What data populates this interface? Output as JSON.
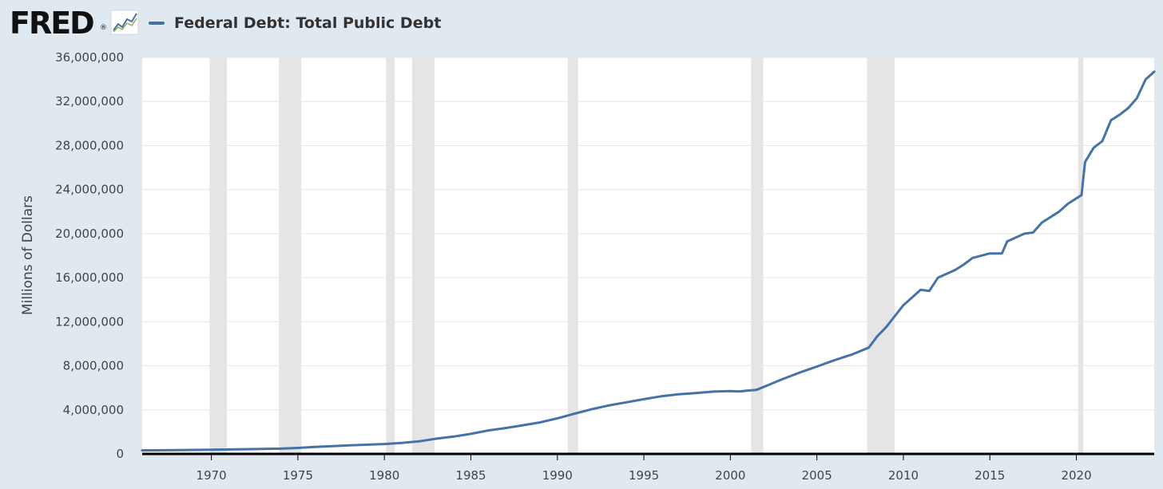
{
  "logo": {
    "text": "FRED",
    "reg": "®",
    "icon": "fred-graph-icon"
  },
  "colors": {
    "series": "#4572a7",
    "background": "#e1e9f0",
    "plot": "#ffffff",
    "recession": "#e5e5e5",
    "grid": "#e6e6e6",
    "axis": "#000000"
  },
  "chart_data": {
    "type": "line",
    "title": "",
    "xlabel": "",
    "ylabel": "Millions of Dollars",
    "xlim": [
      1966.0,
      2024.5
    ],
    "ylim": [
      0,
      36000000
    ],
    "yticks": [
      0,
      4000000,
      8000000,
      12000000,
      16000000,
      20000000,
      24000000,
      28000000,
      32000000,
      36000000
    ],
    "ytick_labels": [
      "0",
      "4,000,000",
      "8,000,000",
      "12,000,000",
      "16,000,000",
      "20,000,000",
      "24,000,000",
      "28,000,000",
      "32,000,000",
      "36,000,000"
    ],
    "xticks": [
      1970,
      1975,
      1980,
      1985,
      1990,
      1995,
      2000,
      2005,
      2010,
      2015,
      2020
    ],
    "xtick_labels": [
      "1970",
      "1975",
      "1980",
      "1985",
      "1990",
      "1995",
      "2000",
      "2005",
      "2010",
      "2015",
      "2020"
    ],
    "grid": true,
    "legend": "top-left",
    "recessions": [
      [
        1969.9,
        1970.9
      ],
      [
        1973.9,
        1975.2
      ],
      [
        1980.1,
        1980.6
      ],
      [
        1981.6,
        1982.9
      ],
      [
        1990.6,
        1991.2
      ],
      [
        2001.2,
        2001.9
      ],
      [
        2007.9,
        2009.5
      ],
      [
        2020.1,
        2020.4
      ]
    ],
    "series": [
      {
        "name": "Federal Debt: Total Public Debt",
        "x": [
          1966.0,
          1968.0,
          1970.0,
          1972.0,
          1974.0,
          1975.0,
          1976.0,
          1978.0,
          1980.0,
          1981.0,
          1982.0,
          1983.0,
          1984.0,
          1985.0,
          1986.0,
          1987.0,
          1988.0,
          1989.0,
          1990.0,
          1991.0,
          1992.0,
          1993.0,
          1994.0,
          1995.0,
          1996.0,
          1997.0,
          1998.0,
          1999.0,
          2000.0,
          2000.5,
          2001.0,
          2001.5,
          2002.0,
          2003.0,
          2004.0,
          2005.0,
          2006.0,
          2007.0,
          2008.0,
          2008.5,
          2009.0,
          2010.0,
          2011.0,
          2011.5,
          2012.0,
          2013.0,
          2013.5,
          2014.0,
          2015.0,
          2015.7,
          2016.0,
          2017.0,
          2017.5,
          2018.0,
          2019.0,
          2019.5,
          2020.0,
          2020.3,
          2020.5,
          2021.0,
          2021.5,
          2022.0,
          2022.5,
          2023.0,
          2023.5,
          2024.0,
          2024.5
        ],
        "values": [
          320000,
          350000,
          380000,
          430000,
          480000,
          540000,
          630000,
          780000,
          900000,
          1000000,
          1140000,
          1380000,
          1570000,
          1820000,
          2130000,
          2350000,
          2600000,
          2860000,
          3230000,
          3660000,
          4060000,
          4410000,
          4690000,
          4970000,
          5230000,
          5410000,
          5530000,
          5660000,
          5700000,
          5670000,
          5750000,
          5810000,
          6130000,
          6780000,
          7380000,
          7930000,
          8500000,
          9010000,
          9650000,
          10700000,
          11500000,
          13500000,
          14900000,
          14800000,
          16000000,
          16700000,
          17200000,
          17800000,
          18200000,
          18200000,
          19300000,
          20000000,
          20100000,
          21000000,
          22000000,
          22700000,
          23200000,
          23500000,
          26500000,
          27800000,
          28400000,
          30300000,
          30800000,
          31400000,
          32300000,
          34000000,
          34700000
        ]
      }
    ]
  }
}
